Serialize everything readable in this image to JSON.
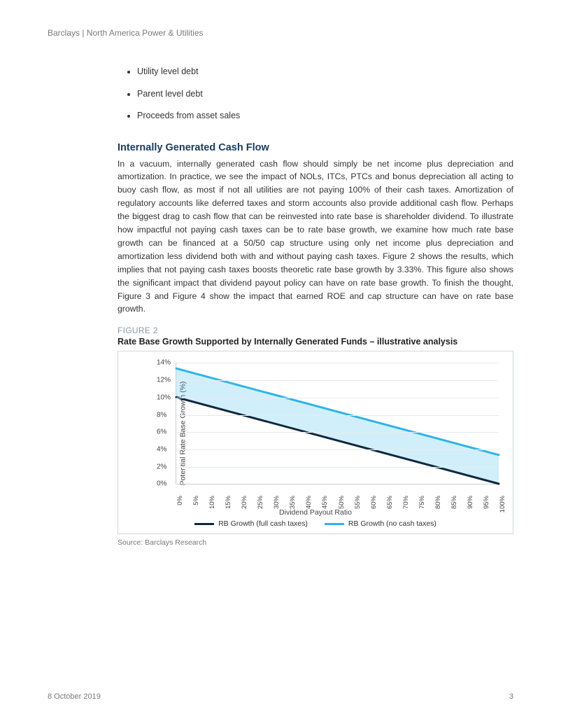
{
  "header": "Barclays | North America Power & Utilities",
  "bullets": [
    "Utility level debt",
    "Parent level debt",
    "Proceeds from asset sales"
  ],
  "section_title": "Internally Generated Cash Flow",
  "body": "In a vacuum, internally generated cash flow should simply be net income plus depreciation and amortization.  In practice, we see the impact of NOLs, ITCs, PTCs and bonus depreciation all acting to buoy cash flow, as most if not all utilities are not paying 100% of their cash taxes.  Amortization of regulatory accounts like deferred taxes and storm accounts also provide additional cash flow.  Perhaps the biggest drag to cash flow that can be reinvested into rate base is shareholder dividend.  To illustrate how impactful not paying cash taxes can be to rate base growth, we examine how much rate base growth can be financed at a 50/50 cap structure using only net income plus depreciation and amortization less dividend both with and without paying cash taxes.  Figure 2 shows the results, which implies that not paying cash taxes boosts theoretic rate base growth by 3.33%.  This figure also shows the significant impact that dividend payout policy can have on rate base growth.  To finish the thought, Figure 3 and Figure 4 show the impact that earned ROE and cap structure can have on rate base growth.",
  "figure": {
    "label": "FIGURE 2",
    "title": "Rate Base Growth Supported by Internally Generated Funds – illustrative analysis",
    "type": "line-area",
    "ylabel": "Potential Rate Base Growth (%)",
    "xlabel": "Dividend Payout Ratio",
    "ylim": [
      0,
      14
    ],
    "ytick_step": 2,
    "ytick_format": "{v}%",
    "xticks": [
      "0%",
      "5%",
      "10%",
      "15%",
      "20%",
      "25%",
      "30%",
      "35%",
      "40%",
      "45%",
      "50%",
      "55%",
      "60%",
      "65%",
      "70%",
      "75%",
      "80%",
      "85%",
      "90%",
      "95%",
      "100%"
    ],
    "series": [
      {
        "name": "RB Growth (full cash taxes)",
        "color": "#10273f",
        "width": 3,
        "y_at_x0": 10.0,
        "y_at_x100": 0.0
      },
      {
        "name": "RB Growth (no cash taxes)",
        "color": "#2fb4e8",
        "width": 3,
        "y_at_x0": 13.33,
        "y_at_x100": 3.33
      }
    ],
    "fill_between_color": "#2fb4e8",
    "fill_between_opacity": 0.22,
    "grid_color": "#e6ebee",
    "border_color": "#cfd8de",
    "background_color": "#ffffff",
    "title_fontsize": 12.5,
    "label_fontsize": 10.5,
    "tick_fontsize": 10
  },
  "source": "Source: Barclays Research",
  "footer_date": "8 October 2019",
  "footer_page": "3",
  "colors": {
    "heading": "#1a3a5a",
    "muted": "#7a7a7a",
    "text": "#333333"
  }
}
